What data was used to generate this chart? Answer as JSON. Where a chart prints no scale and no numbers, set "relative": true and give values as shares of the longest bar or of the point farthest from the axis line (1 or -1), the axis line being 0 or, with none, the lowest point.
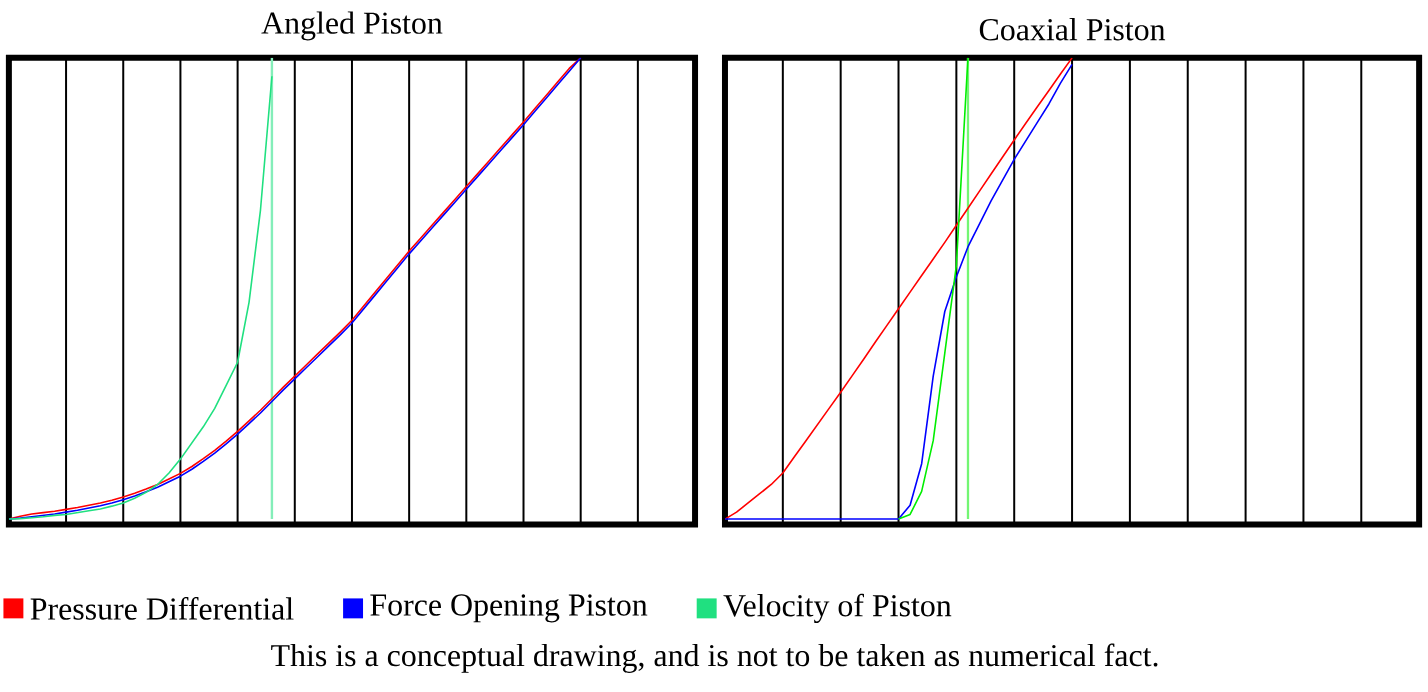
{
  "chart_data": [
    {
      "type": "line",
      "title": "Angled Piston",
      "relative": true,
      "grid": "x",
      "legend": "bottom",
      "categories": [
        null,
        null,
        null,
        null,
        null,
        null,
        null,
        null,
        null,
        null,
        null,
        null,
        null,
        null,
        null,
        null,
        null,
        null,
        null,
        null,
        null,
        null,
        null,
        null,
        null,
        null,
        null,
        null,
        null,
        null,
        null,
        null,
        null,
        null,
        null,
        null,
        null,
        null,
        null,
        null,
        null,
        null,
        null,
        null,
        null,
        null,
        null,
        null,
        null,
        null,
        null,
        null,
        null,
        null,
        null,
        null,
        null,
        null,
        null,
        null,
        null
      ],
      "series": [
        {
          "name": "Pressure Differential",
          "color": "#ff0000",
          "values": [
            0,
            0.006,
            0.011,
            0.014,
            0.017,
            0.021,
            0.025,
            0.03,
            0.035,
            0.041,
            0.048,
            0.056,
            0.065,
            0.075,
            0.087,
            0.099,
            0.114,
            0.131,
            0.149,
            0.169,
            0.19,
            0.213,
            0.236,
            0.261,
            0.286,
            0.31,
            0.334,
            0.358,
            0.382,
            0.406,
            0.431,
            0.461,
            0.491,
            0.521,
            0.551,
            0.581,
            0.609,
            0.637,
            0.665,
            0.693,
            0.721,
            0.749,
            0.777,
            0.805,
            0.833,
            0.861,
            0.89,
            0.919,
            0.948,
            0.977,
            1,
            null,
            null,
            null,
            null,
            null,
            null,
            null,
            null,
            null,
            null
          ]
        },
        {
          "name": "Force Opening Piston",
          "color": "#0000ff",
          "values": [
            0,
            0.002,
            0.005,
            0.008,
            0.011,
            0.015,
            0.019,
            0.024,
            0.029,
            0.035,
            0.042,
            0.05,
            0.059,
            0.069,
            0.081,
            0.093,
            0.108,
            0.125,
            0.143,
            0.163,
            0.184,
            0.207,
            0.23,
            0.255,
            0.28,
            0.304,
            0.328,
            0.352,
            0.376,
            0.4,
            0.425,
            0.455,
            0.485,
            0.515,
            0.545,
            0.575,
            0.603,
            0.631,
            0.659,
            0.687,
            0.715,
            0.743,
            0.771,
            0.799,
            0.827,
            0.855,
            0.884,
            0.913,
            0.942,
            0.971,
            1,
            null,
            null,
            null,
            null,
            null,
            null,
            null,
            null,
            null,
            null
          ]
        },
        {
          "name": "Velocity of Piston",
          "color": "#20e080",
          "values": [
            0,
            0.001,
            0.003,
            0.005,
            0.008,
            0.01,
            0.014,
            0.018,
            0.022,
            0.028,
            0.035,
            0.045,
            0.058,
            0.075,
            0.1,
            0.13,
            0.165,
            0.2,
            0.24,
            0.29,
            0.34,
            0.47,
            0.67,
            0.96,
            null,
            null,
            null,
            null,
            null,
            null,
            null,
            null,
            null,
            null,
            null,
            null,
            null,
            null,
            null,
            null,
            null,
            null,
            null,
            null,
            null,
            null,
            null,
            null,
            null,
            null,
            null,
            null,
            null,
            null,
            null,
            null,
            null,
            null,
            null,
            null,
            null
          ]
        }
      ],
      "annotations": [
        "This is a conceptual drawing, and is not to be taken as numerical fact."
      ]
    },
    {
      "type": "line",
      "title": "Coaxial Piston",
      "relative": true,
      "grid": "x",
      "categories": [
        null,
        null,
        null,
        null,
        null,
        null,
        null,
        null,
        null,
        null,
        null,
        null,
        null,
        null,
        null,
        null,
        null,
        null,
        null,
        null,
        null,
        null,
        null,
        null,
        null,
        null,
        null,
        null,
        null,
        null,
        null,
        null,
        null,
        null,
        null,
        null,
        null,
        null,
        null,
        null,
        null,
        null,
        null,
        null,
        null,
        null,
        null,
        null,
        null,
        null,
        null,
        null,
        null,
        null,
        null,
        null,
        null,
        null,
        null,
        null,
        null
      ],
      "series": [
        {
          "color": "#ff0000",
          "values": [
            0,
            0.015,
            0.035,
            0.055,
            0.075,
            0.1,
            0.135,
            0.17,
            0.205,
            0.24,
            0.275,
            0.311,
            0.347,
            0.384,
            0.42,
            0.456,
            0.492,
            0.528,
            0.564,
            0.6,
            0.637,
            0.674,
            0.711,
            0.748,
            0.785,
            0.822,
            0.858,
            0.894,
            0.929,
            0.965,
            1,
            null,
            null,
            null,
            null,
            null,
            null,
            null,
            null,
            null,
            null,
            null,
            null,
            null,
            null,
            null,
            null,
            null,
            null,
            null,
            null,
            null,
            null,
            null,
            null,
            null,
            null,
            null,
            null,
            null,
            null
          ]
        },
        {
          "color": "#0000ff",
          "values": [
            0,
            0,
            0,
            0,
            0,
            0,
            0,
            0,
            0,
            0,
            0,
            0,
            0,
            0,
            0,
            0,
            0.03,
            0.12,
            0.31,
            0.45,
            0.525,
            0.59,
            0.64,
            0.69,
            0.735,
            0.78,
            0.82,
            0.86,
            0.9,
            0.945,
            0.986,
            null,
            null,
            null,
            null,
            null,
            null,
            null,
            null,
            null,
            null,
            null,
            null,
            null,
            null,
            null,
            null,
            null,
            null,
            null,
            null,
            null,
            null,
            null,
            null,
            null,
            null,
            null,
            null,
            null,
            null
          ]
        },
        {
          "color": "#00ee00",
          "values": [
            null,
            null,
            null,
            null,
            null,
            null,
            null,
            null,
            null,
            null,
            null,
            null,
            null,
            null,
            null,
            0,
            0.01,
            0.06,
            0.17,
            0.36,
            0.55,
            1,
            null,
            null,
            null,
            null,
            null,
            null,
            null,
            null,
            null,
            null,
            null,
            null,
            null,
            null,
            null,
            null,
            null,
            null,
            null,
            null,
            null,
            null,
            null,
            null,
            null,
            null,
            null,
            null,
            null,
            null,
            null,
            null,
            null,
            null,
            null,
            null,
            null,
            null,
            null
          ]
        }
      ]
    }
  ]
}
